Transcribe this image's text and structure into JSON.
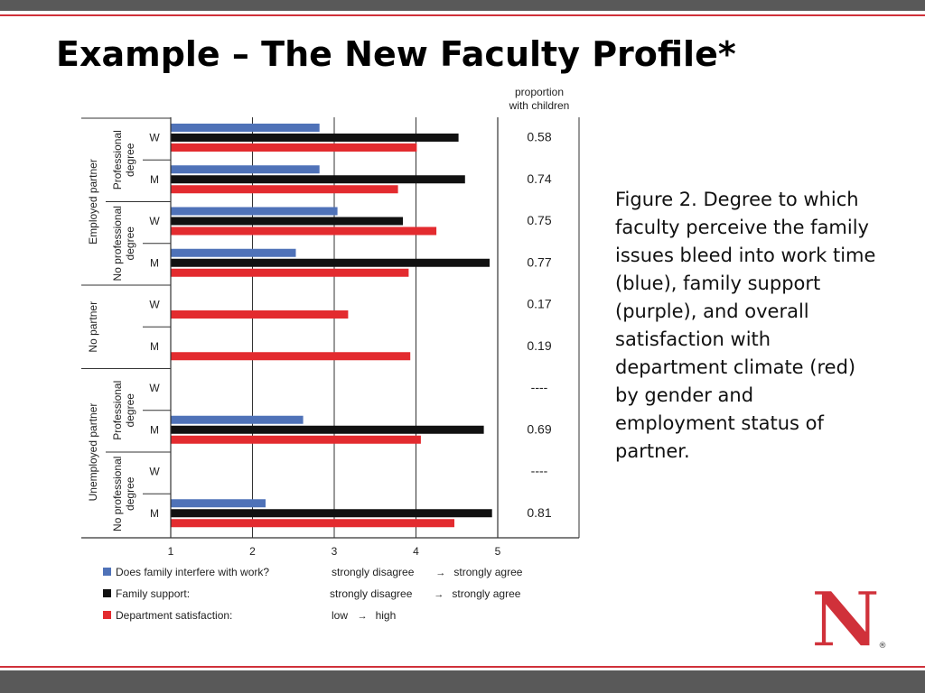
{
  "slide": {
    "title": "Example – The New Faculty Profile*",
    "caption": "Figure 2. Degree to which faculty perceive the family issues bleed into work time (blue), family support (purple), and overall satisfaction with department climate (red) by gender and employment status of partner.",
    "logo_letter": "N",
    "logo_mark": "®"
  },
  "colors": {
    "blue": "#4f72b8",
    "black": "#111111",
    "red": "#e32b2f",
    "brand_red": "#d0313a",
    "bar_gray": "#595959"
  },
  "chart_data": {
    "type": "bar",
    "orientation": "horizontal",
    "xlim": [
      1,
      6
    ],
    "xticks": [
      1,
      2,
      3,
      4,
      5
    ],
    "grid": true,
    "proportion_header": [
      "proportion",
      "with children"
    ],
    "groups": [
      {
        "label": [
          "Employed partner"
        ],
        "subgroups": [
          {
            "label": [
              "Professional",
              "degree"
            ],
            "rows": [
              {
                "gender": "W",
                "interfere": 2.82,
                "support": 4.52,
                "satisfaction": 4.01,
                "proportion": "0.58"
              },
              {
                "gender": "M",
                "interfere": 2.82,
                "support": 4.6,
                "satisfaction": 3.78,
                "proportion": "0.74"
              }
            ]
          },
          {
            "label": [
              "No professional",
              "degree"
            ],
            "rows": [
              {
                "gender": "W",
                "interfere": 3.04,
                "support": 3.84,
                "satisfaction": 4.25,
                "proportion": "0.75"
              },
              {
                "gender": "M",
                "interfere": 2.53,
                "support": 4.9,
                "satisfaction": 3.91,
                "proportion": "0.77"
              }
            ]
          }
        ]
      },
      {
        "label": [
          "No partner"
        ],
        "subgroups": [
          {
            "label": [],
            "rows": [
              {
                "gender": "W",
                "interfere": null,
                "support": null,
                "satisfaction": 3.17,
                "proportion": "0.17"
              },
              {
                "gender": "M",
                "interfere": null,
                "support": null,
                "satisfaction": 3.93,
                "proportion": "0.19"
              }
            ]
          }
        ]
      },
      {
        "label": [
          "Unemployed partner"
        ],
        "subgroups": [
          {
            "label": [
              "Professional",
              "degree"
            ],
            "rows": [
              {
                "gender": "W",
                "interfere": null,
                "support": null,
                "satisfaction": null,
                "proportion": "----"
              },
              {
                "gender": "M",
                "interfere": 2.62,
                "support": 4.83,
                "satisfaction": 4.06,
                "proportion": "0.69"
              }
            ]
          },
          {
            "label": [
              "No professional",
              "degree"
            ],
            "rows": [
              {
                "gender": "W",
                "interfere": null,
                "support": null,
                "satisfaction": null,
                "proportion": "----"
              },
              {
                "gender": "M",
                "interfere": 2.16,
                "support": 4.93,
                "satisfaction": 4.47,
                "proportion": "0.81"
              }
            ]
          }
        ]
      }
    ],
    "legend": [
      {
        "key": "interfere",
        "label": "Does family interfere with work?",
        "scale_low": "strongly disagree",
        "scale_high": "strongly agree"
      },
      {
        "key": "support",
        "label": "Family support:",
        "scale_low": "strongly disagree",
        "scale_high": "strongly agree"
      },
      {
        "key": "satisfaction",
        "label": "Department satisfaction:",
        "scale_low": "low",
        "scale_high": "high"
      }
    ],
    "arrow": "→"
  }
}
